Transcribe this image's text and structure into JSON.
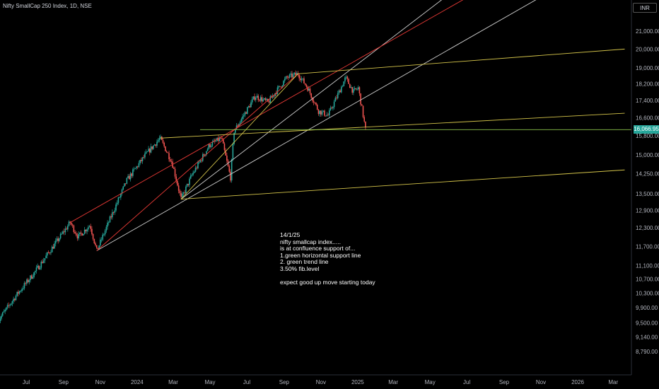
{
  "header": {
    "title": "Nifty SmallCap 250 Index, 1D, NSE",
    "currency": "INR"
  },
  "last_price": "16,066.95",
  "annotation": {
    "lines": [
      "14/1/25",
      "nifty smallcap index.....",
      "is at confluence support of...",
      "1.green horizontal support line",
      "2. green trend line",
      "3.50% fib.level",
      "",
      "expect good up move starting today"
    ]
  },
  "colors": {
    "background": "#000000",
    "up": "#26a69a",
    "down": "#ef5350",
    "white_line": "#cfcfcf",
    "red_line": "#e53935",
    "yellow_line": "#d4c44a",
    "green_line": "#8bc34a"
  },
  "chart_data": {
    "type": "candlestick",
    "title": "Nifty SmallCap 250 Index, 1D, NSE",
    "x_ticks": [
      "Jul",
      "Sep",
      "Nov",
      "2024",
      "Mar",
      "May",
      "Jul",
      "Sep",
      "Nov",
      "2025",
      "Mar",
      "May",
      "Jul",
      "Sep",
      "Nov",
      "2026",
      "Mar"
    ],
    "y_ticks": [
      "21,000.00",
      "20,000.00",
      "19,000.00",
      "18,200.00",
      "17,400.00",
      "16,600.00",
      "15,800.00",
      "15,000.00",
      "14,250.00",
      "13,500.00",
      "12,900.00",
      "12,300.00",
      "11,700.00",
      "11,100.00",
      "10,700.00",
      "10,300.00",
      "9,900.00",
      "9,500.00",
      "9,140.00",
      "8,790.00"
    ],
    "scale": "log",
    "last_price": 16066.95,
    "price_path": [
      [
        "2023-05-15",
        9550
      ],
      [
        "2023-06-15",
        10250
      ],
      [
        "2023-07-15",
        10900
      ],
      [
        "2023-08-15",
        11700
      ],
      [
        "2023-09-12",
        12480
      ],
      [
        "2023-09-25",
        12000
      ],
      [
        "2023-10-15",
        12400
      ],
      [
        "2023-10-26",
        11560
      ],
      [
        "2023-11-15",
        12500
      ],
      [
        "2023-12-15",
        14000
      ],
      [
        "2024-01-15",
        15000
      ],
      [
        "2024-02-08",
        15700
      ],
      [
        "2024-02-28",
        14700
      ],
      [
        "2024-03-14",
        13300
      ],
      [
        "2024-04-01",
        14200
      ],
      [
        "2024-04-30",
        15400
      ],
      [
        "2024-05-20",
        15700
      ],
      [
        "2024-05-24",
        15250
      ],
      [
        "2024-06-04",
        14100
      ],
      [
        "2024-06-10",
        16000
      ],
      [
        "2024-07-15",
        17600
      ],
      [
        "2024-08-05",
        17300
      ],
      [
        "2024-09-05",
        18500
      ],
      [
        "2024-09-24",
        18700
      ],
      [
        "2024-10-10",
        18000
      ],
      [
        "2024-10-28",
        16900
      ],
      [
        "2024-11-13",
        16700
      ],
      [
        "2024-12-12",
        18500
      ],
      [
        "2024-12-25",
        17800
      ],
      [
        "2025-01-02",
        18000
      ],
      [
        "2025-01-10",
        16700
      ],
      [
        "2025-01-14",
        16067
      ]
    ],
    "drawings": [
      {
        "type": "trend-line",
        "color": "white",
        "from": [
          "2023-10-26",
          11560
        ],
        "to": [
          "2025-12-01",
          23700
        ]
      },
      {
        "type": "trend-line",
        "color": "white",
        "from": [
          "2024-03-14",
          13300
        ],
        "to": [
          "2025-06-01",
          23200
        ]
      },
      {
        "type": "trend-line",
        "color": "red",
        "from": [
          "2023-09-12",
          12480
        ],
        "to": [
          "2025-07-01",
          23000
        ]
      },
      {
        "type": "trend-line",
        "color": "red",
        "from": [
          "2023-10-26",
          11560
        ],
        "to": [
          "2024-09-24",
          18700
        ]
      },
      {
        "type": "trend-line",
        "color": "yellow",
        "from": [
          "2024-09-24",
          18700
        ],
        "to": [
          "2026-03-20",
          20000
        ]
      },
      {
        "type": "trend-line",
        "color": "yellow",
        "from": [
          "2024-02-08",
          15700
        ],
        "to": [
          "2026-03-20",
          16800
        ]
      },
      {
        "type": "trend-line",
        "color": "yellow",
        "from": [
          "2024-03-14",
          13300
        ],
        "to": [
          "2026-03-20",
          14400
        ]
      },
      {
        "type": "trend-line",
        "color": "yellow",
        "from": [
          "2024-03-14",
          13300
        ],
        "to": [
          "2024-09-24",
          18700
        ]
      },
      {
        "type": "horizontal-line",
        "color": "green",
        "value": 16066.95
      }
    ]
  }
}
